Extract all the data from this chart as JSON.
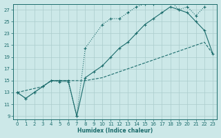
{
  "xlabel": "Humidex (Indice chaleur)",
  "bg_color": "#cce8e8",
  "line_color": "#1a6b6b",
  "grid_color": "#aacccc",
  "xlim": [
    -0.5,
    23.5
  ],
  "ylim": [
    8.5,
    28.0
  ],
  "xticks": [
    0,
    1,
    2,
    3,
    4,
    5,
    6,
    7,
    8,
    9,
    10,
    11,
    12,
    13,
    14,
    15,
    16,
    17,
    18,
    19,
    20,
    21,
    22,
    23
  ],
  "yticks": [
    9,
    11,
    13,
    15,
    17,
    19,
    21,
    23,
    25,
    27
  ],
  "line1_x": [
    0,
    1,
    2,
    3,
    4,
    5,
    6,
    7,
    8,
    10,
    11,
    12,
    13,
    14,
    15,
    16,
    17,
    18,
    19,
    20,
    21,
    22
  ],
  "line1_y": [
    13.0,
    12.0,
    13.0,
    14.0,
    15.0,
    14.8,
    14.8,
    9.0,
    20.5,
    24.5,
    25.5,
    25.5,
    26.5,
    27.5,
    28.0,
    28.0,
    28.5,
    28.5,
    27.0,
    27.5,
    26.0,
    27.5
  ],
  "line2_x": [
    0,
    1,
    2,
    3,
    4,
    5,
    6,
    7,
    8,
    9,
    10,
    11,
    12,
    13,
    14,
    15,
    16,
    17,
    18,
    19,
    20,
    21,
    22,
    23
  ],
  "line2_y": [
    13.0,
    12.0,
    13.0,
    14.0,
    15.0,
    15.0,
    15.0,
    9.0,
    15.5,
    16.5,
    17.5,
    19.0,
    20.5,
    21.5,
    23.0,
    24.5,
    25.5,
    26.5,
    27.5,
    27.0,
    26.5,
    25.0,
    23.5,
    19.5
  ],
  "line3_x": [
    0,
    3,
    4,
    5,
    6,
    7,
    8,
    10,
    11,
    12,
    13,
    14,
    15,
    16,
    17,
    18,
    19,
    20,
    21,
    22,
    23
  ],
  "line3_y": [
    13.0,
    14.0,
    15.0,
    15.0,
    15.0,
    15.0,
    15.0,
    15.5,
    16.0,
    16.5,
    17.0,
    17.5,
    18.0,
    18.5,
    19.0,
    19.5,
    20.0,
    20.5,
    21.0,
    21.5,
    19.5
  ]
}
